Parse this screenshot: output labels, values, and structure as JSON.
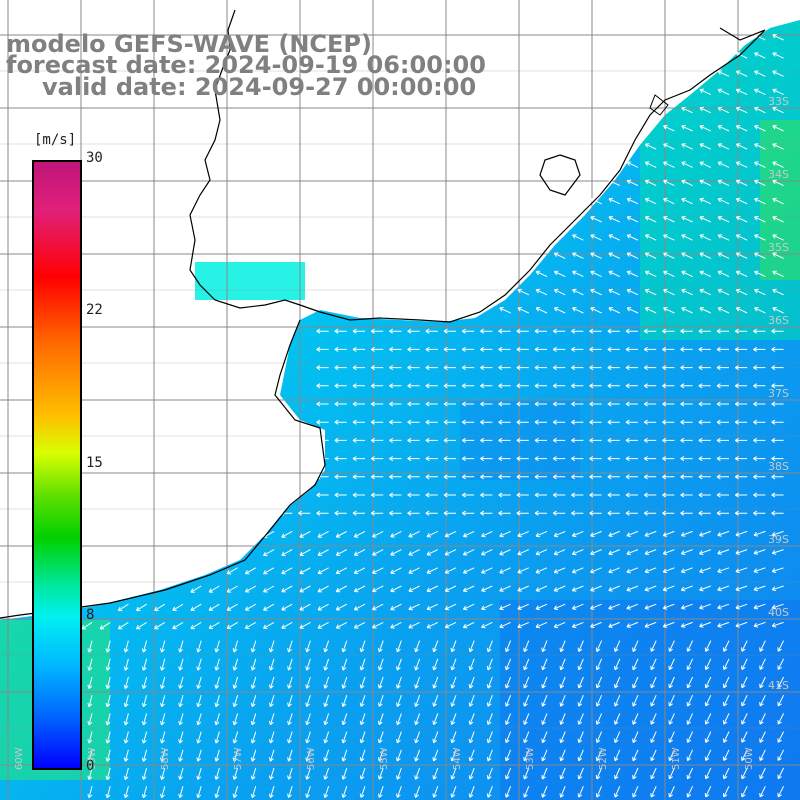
{
  "title": {
    "line1": "modelo GEFS-WAVE (NCEP)",
    "line2": "forecast date: 2024-09-19 06:00:00",
    "line3": "valid date: 2024-09-27 00:00:00"
  },
  "colorbar": {
    "unit": "[m/s]",
    "ticks": [
      "30",
      "22",
      "15",
      "8",
      "0"
    ]
  },
  "grid": {
    "lat_labels": [
      "33S",
      "34S",
      "35S",
      "36S",
      "37S",
      "38S",
      "39S",
      "40S",
      "41S"
    ],
    "lon_labels": [
      "60W",
      "59W",
      "58W",
      "57W",
      "56W",
      "55W",
      "54W",
      "53W",
      "52W",
      "51W",
      "50W"
    ]
  },
  "colors": {
    "land": "#ffffff",
    "grid": "#888888",
    "coast": "#000000",
    "arrow": "#ffffff",
    "title": "#808080"
  }
}
